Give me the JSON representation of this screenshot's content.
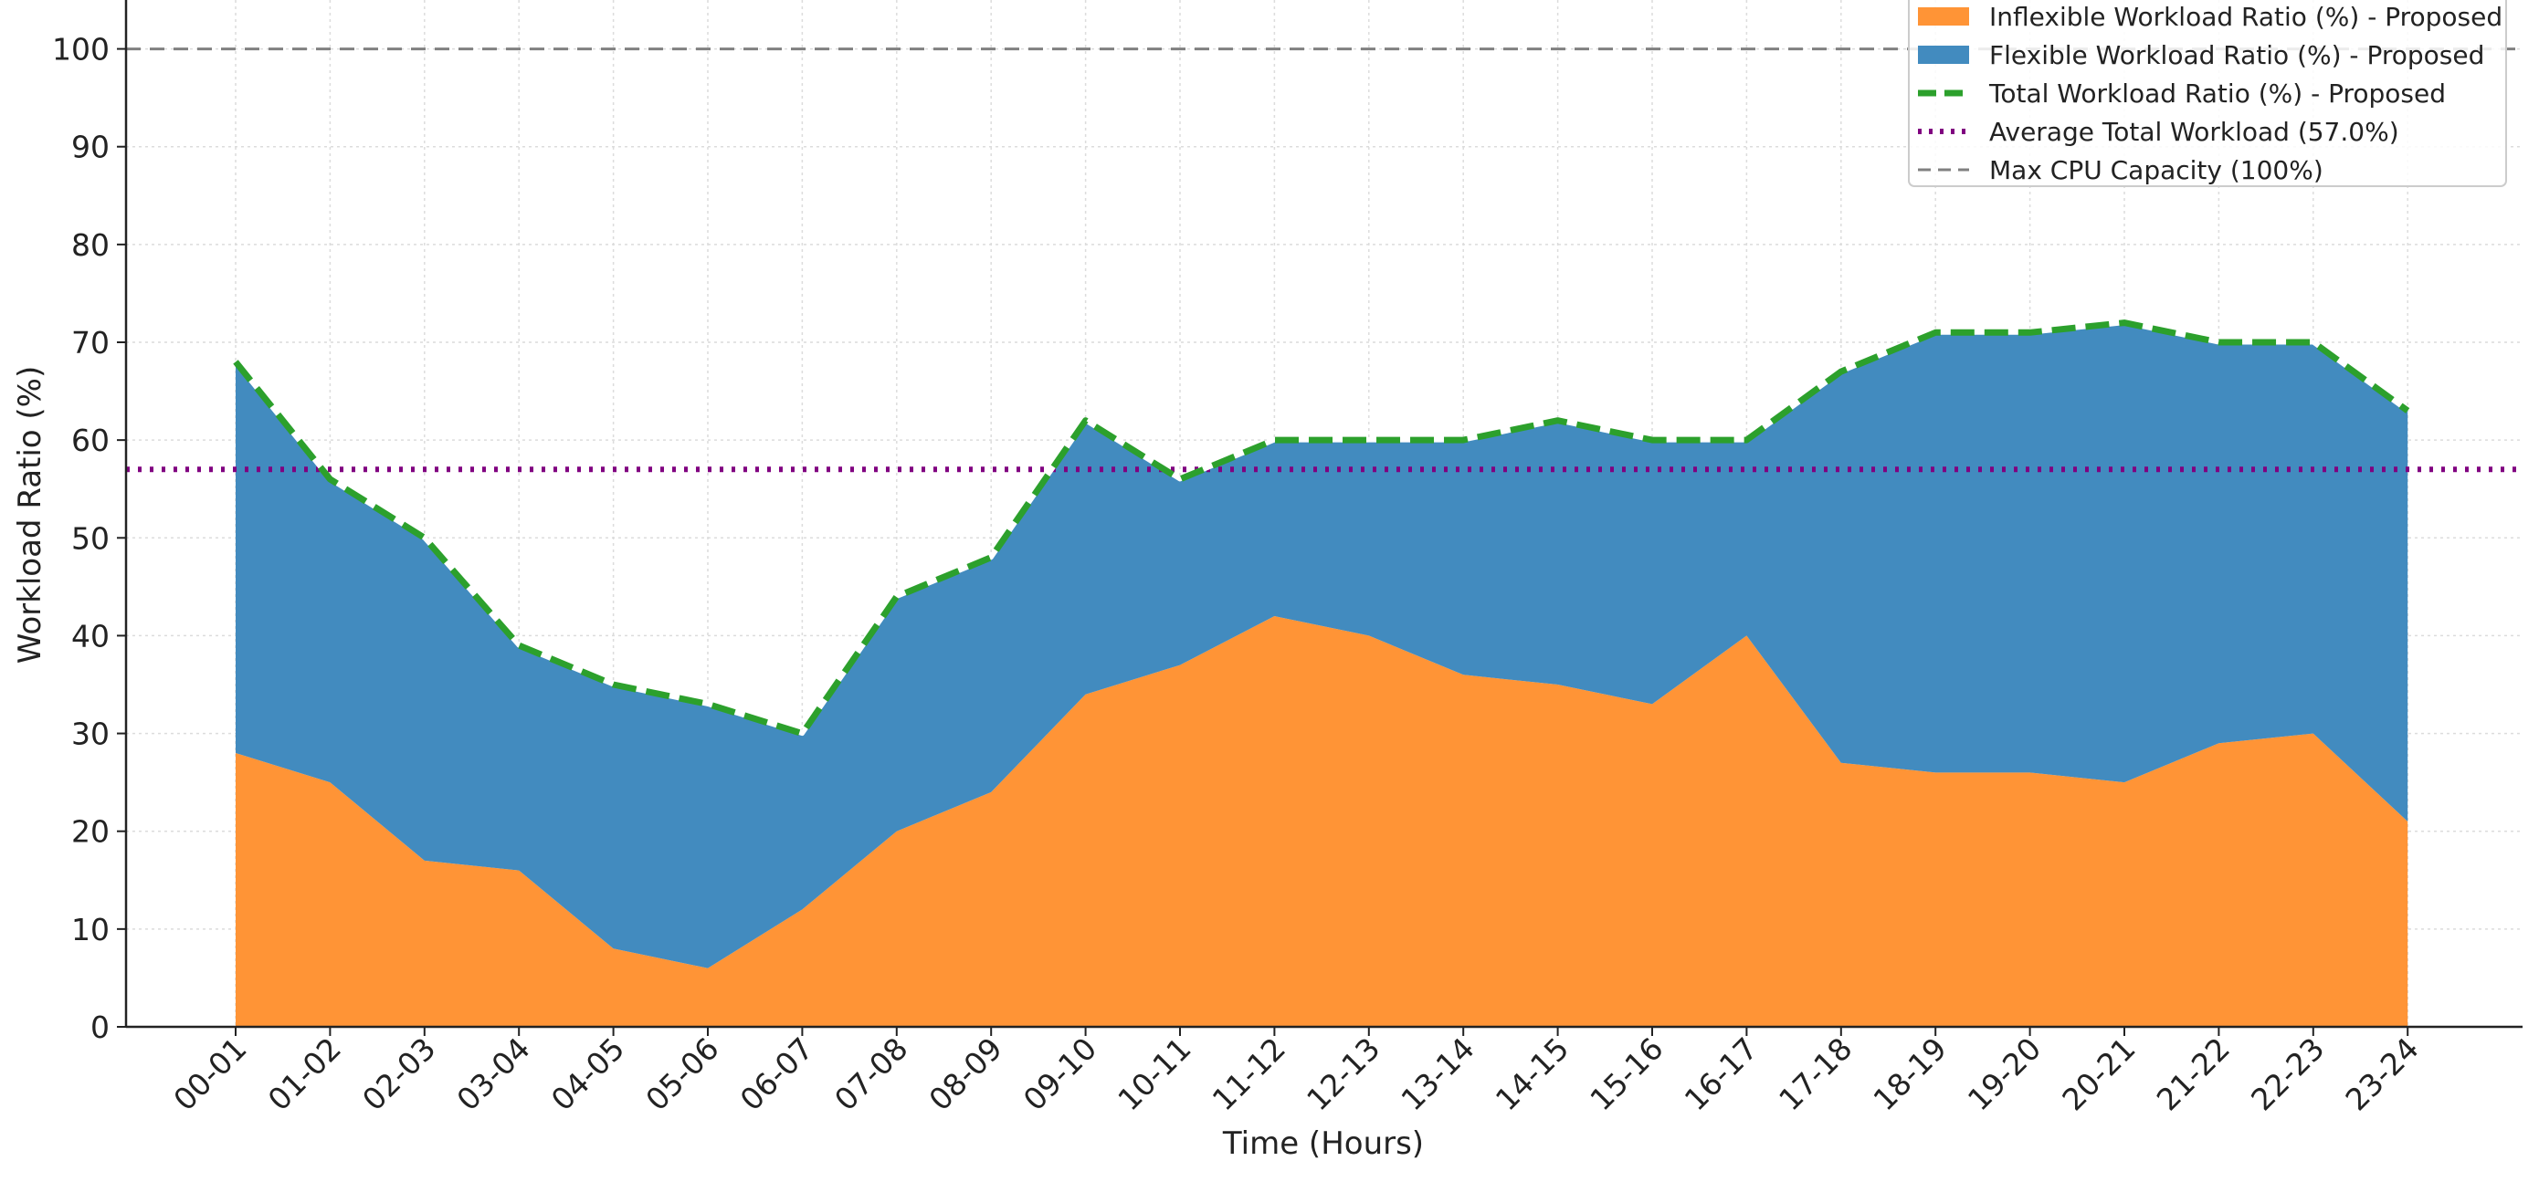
{
  "chart_data": {
    "type": "area",
    "title": "",
    "xlabel": "Time (Hours)",
    "ylabel": "Workload Ratio (%)",
    "ylim": [
      0,
      105
    ],
    "yticks": [
      0,
      10,
      20,
      30,
      40,
      50,
      60,
      70,
      80,
      90,
      100
    ],
    "grid": true,
    "legend_position": "top-right",
    "categories": [
      "00-01",
      "01-02",
      "02-03",
      "03-04",
      "04-05",
      "05-06",
      "06-07",
      "07-08",
      "08-09",
      "09-10",
      "10-11",
      "11-12",
      "12-13",
      "13-14",
      "14-15",
      "15-16",
      "16-17",
      "17-18",
      "18-19",
      "19-20",
      "20-21",
      "21-22",
      "22-23",
      "23-24"
    ],
    "series": [
      {
        "name": "Inflexible Workload Ratio (%) - Proposed",
        "kind": "stacked-area",
        "color": "#ff9436",
        "values": [
          28,
          25,
          17,
          16,
          8,
          6,
          12,
          20,
          24,
          34,
          37,
          42,
          40,
          36,
          35,
          33,
          40,
          27,
          26,
          26,
          25,
          29,
          30,
          21
        ]
      },
      {
        "name": "Flexible Workload Ratio (%) - Proposed",
        "kind": "stacked-area",
        "color": "#428bbf",
        "values": [
          40,
          31,
          33,
          23,
          27,
          27,
          18,
          24,
          24,
          28,
          19,
          18,
          20,
          24,
          27,
          27,
          20,
          40,
          45,
          45,
          47,
          41,
          40,
          42
        ]
      },
      {
        "name": "Total Workload Ratio (%) - Proposed",
        "kind": "dashed-line",
        "color": "#2ca02c",
        "values": [
          68,
          56,
          50,
          39,
          35,
          33,
          30,
          44,
          48,
          62,
          56,
          60,
          60,
          60,
          62,
          60,
          60,
          67,
          71,
          71,
          72,
          70,
          70,
          63
        ]
      }
    ],
    "reference_lines": [
      {
        "name": "Average Total Workload (57.0%)",
        "value": 57,
        "style": "dotted",
        "color": "#800080"
      },
      {
        "name": "Max CPU Capacity (100%)",
        "value": 100,
        "style": "dashed",
        "color": "#808080"
      }
    ]
  }
}
